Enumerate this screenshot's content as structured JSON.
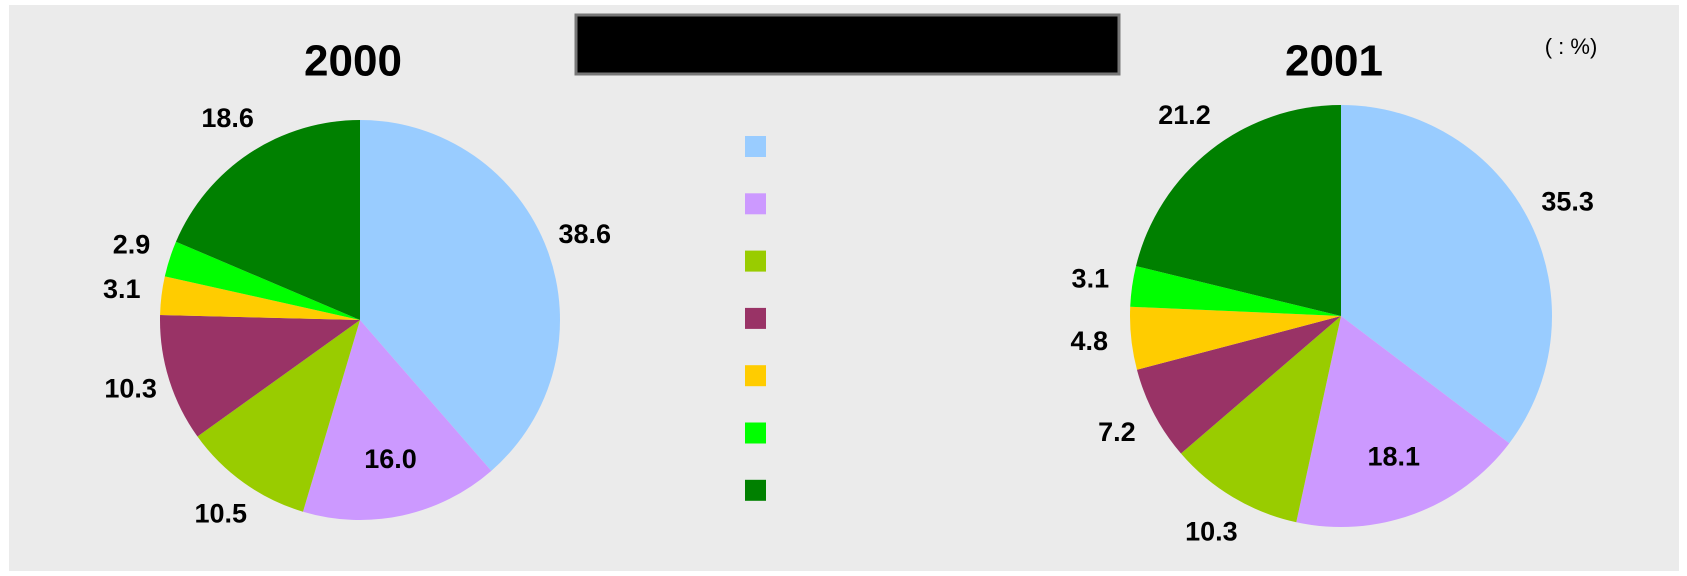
{
  "unit_note": "(       : %)",
  "chart_data": [
    {
      "type": "pie",
      "title": "2000",
      "categories": [
        null,
        null,
        null,
        null,
        null,
        null,
        null
      ],
      "values": [
        38.6,
        16.0,
        10.5,
        10.3,
        3.1,
        2.9,
        18.6
      ],
      "value_labels": [
        "38.6",
        "16.0",
        "10.5",
        "10.3",
        "3.1",
        "2.9",
        "18.6"
      ],
      "colors": [
        "#99ccff",
        "#cc99ff",
        "#99cc00",
        "#993366",
        "#ffcc00",
        "#00ff00",
        "#008000"
      ]
    },
    {
      "type": "pie",
      "title": "2001",
      "categories": [
        null,
        null,
        null,
        null,
        null,
        null,
        null
      ],
      "values": [
        35.3,
        18.1,
        10.3,
        7.2,
        4.8,
        3.1,
        21.2
      ],
      "value_labels": [
        "35.3",
        "18.1",
        "10.3",
        "7.2",
        "4.8",
        "3.1",
        "21.2"
      ],
      "colors": [
        "#99ccff",
        "#cc99ff",
        "#99cc00",
        "#993366",
        "#ffcc00",
        "#00ff00",
        "#008000"
      ]
    }
  ]
}
